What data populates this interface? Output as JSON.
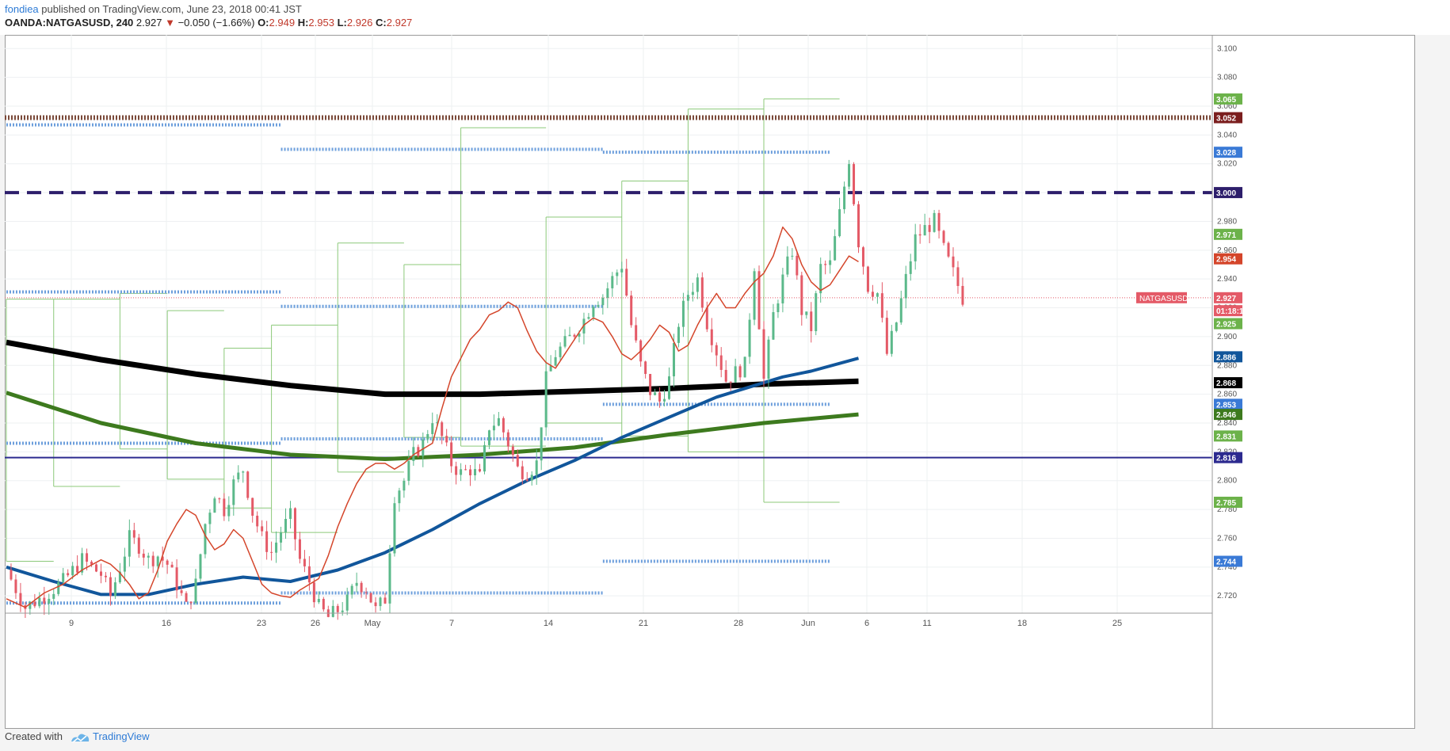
{
  "header": {
    "author": "fondiea",
    "published_text": "published on TradingView.com, June 23, 2018 00:41 JST",
    "symbol": "OANDA:NATGASUSD, 240",
    "last": "2.927",
    "change": "−0.050 (−1.66%)",
    "o_label": "O:",
    "o_value": "2.949",
    "h_label": "H:",
    "h_value": "2.953",
    "l_label": "L:",
    "l_value": "2.926",
    "c_label": "C:",
    "c_value": "2.927"
  },
  "footer": {
    "created_with": "Created with",
    "brand": "TradingView"
  },
  "colors": {
    "up": "#5bb98a",
    "down": "#e45a67",
    "ema_short": "#d4452a",
    "ma_blue": "#11569b",
    "ma_black": "#000000",
    "ma_green": "#3d7a1e",
    "envelope": "#8cc97a",
    "pivot": "#6d9fdc",
    "resistance_brown": "#7b4a3a",
    "round_dashed": "#2d1e6b",
    "support_navy": "#2c2a8f",
    "last_price": "#e45a67"
  },
  "chart_data": {
    "type": "candlestick",
    "title": "",
    "timeframe": "240",
    "x_tick_labels": [
      "9",
      "16",
      "23",
      "26",
      "May",
      "7",
      "14",
      "21",
      "28",
      "Jun",
      "6",
      "11",
      "18",
      "25"
    ],
    "y_tick_labels": [
      "3.100",
      "3.080",
      "3.060",
      "3.040",
      "3.020",
      "3.000",
      "2.980",
      "2.960",
      "2.940",
      "2.920",
      "2.900",
      "2.880",
      "2.860",
      "2.840",
      "2.820",
      "2.800",
      "2.780",
      "2.760",
      "2.740",
      "2.720"
    ],
    "ylim": [
      2.708,
      3.104
    ],
    "x_range_days": [
      0,
      106
    ],
    "grid": true,
    "series": [
      {
        "key": "ema_short",
        "points": [
          [
            0,
            2.718
          ],
          [
            2,
            2.712
          ],
          [
            4,
            2.722
          ],
          [
            6,
            2.728
          ],
          [
            8,
            2.738
          ],
          [
            10,
            2.745
          ],
          [
            11,
            2.742
          ],
          [
            12,
            2.736
          ],
          [
            13,
            2.728
          ],
          [
            14,
            2.718
          ],
          [
            15,
            2.722
          ],
          [
            16,
            2.738
          ],
          [
            17,
            2.758
          ],
          [
            18,
            2.77
          ],
          [
            19,
            2.78
          ],
          [
            20,
            2.776
          ],
          [
            21,
            2.762
          ],
          [
            22,
            2.752
          ],
          [
            23,
            2.756
          ],
          [
            24,
            2.766
          ],
          [
            25,
            2.76
          ],
          [
            26,
            2.744
          ],
          [
            27,
            2.728
          ],
          [
            28,
            2.722
          ],
          [
            29,
            2.72
          ],
          [
            30,
            2.719
          ],
          [
            31,
            2.724
          ],
          [
            32,
            2.728
          ],
          [
            33,
            2.732
          ],
          [
            34,
            2.748
          ],
          [
            35,
            2.768
          ],
          [
            36,
            2.784
          ],
          [
            37,
            2.798
          ],
          [
            38,
            2.808
          ],
          [
            39,
            2.812
          ],
          [
            40,
            2.812
          ],
          [
            41,
            2.808
          ],
          [
            42,
            2.812
          ],
          [
            43,
            2.818
          ],
          [
            44,
            2.822
          ],
          [
            45,
            2.826
          ],
          [
            46,
            2.85
          ],
          [
            47,
            2.872
          ],
          [
            48,
            2.885
          ],
          [
            49,
            2.898
          ],
          [
            50,
            2.905
          ],
          [
            51,
            2.915
          ],
          [
            52,
            2.918
          ],
          [
            53,
            2.924
          ],
          [
            54,
            2.92
          ],
          [
            55,
            2.904
          ],
          [
            56,
            2.89
          ],
          [
            57,
            2.882
          ],
          [
            58,
            2.878
          ],
          [
            59,
            2.888
          ],
          [
            60,
            2.898
          ],
          [
            61,
            2.908
          ],
          [
            62,
            2.913
          ],
          [
            63,
            2.91
          ],
          [
            64,
            2.9
          ],
          [
            65,
            2.888
          ],
          [
            66,
            2.884
          ],
          [
            67,
            2.89
          ],
          [
            68,
            2.898
          ],
          [
            69,
            2.908
          ],
          [
            70,
            2.903
          ],
          [
            71,
            2.89
          ],
          [
            72,
            2.894
          ],
          [
            73,
            2.908
          ],
          [
            74,
            2.92
          ],
          [
            75,
            2.93
          ],
          [
            76,
            2.92
          ],
          [
            77,
            2.92
          ],
          [
            78,
            2.93
          ],
          [
            79,
            2.938
          ],
          [
            80,
            2.944
          ],
          [
            81,
            2.956
          ],
          [
            82,
            2.976
          ],
          [
            83,
            2.968
          ],
          [
            84,
            2.95
          ],
          [
            85,
            2.938
          ],
          [
            86,
            2.932
          ],
          [
            87,
            2.936
          ],
          [
            88,
            2.946
          ],
          [
            89,
            2.956
          ],
          [
            90,
            2.952
          ]
        ]
      },
      {
        "key": "ma_blue",
        "points": [
          [
            0,
            2.74
          ],
          [
            5,
            2.73
          ],
          [
            10,
            2.721
          ],
          [
            15,
            2.721
          ],
          [
            20,
            2.728
          ],
          [
            25,
            2.733
          ],
          [
            30,
            2.73
          ],
          [
            35,
            2.738
          ],
          [
            40,
            2.75
          ],
          [
            45,
            2.766
          ],
          [
            50,
            2.784
          ],
          [
            55,
            2.8
          ],
          [
            60,
            2.814
          ],
          [
            65,
            2.83
          ],
          [
            70,
            2.844
          ],
          [
            75,
            2.858
          ],
          [
            80,
            2.868
          ],
          [
            82,
            2.872
          ],
          [
            85,
            2.876
          ],
          [
            90,
            2.885
          ]
        ]
      },
      {
        "key": "ma_black",
        "points": [
          [
            0,
            2.896
          ],
          [
            10,
            2.884
          ],
          [
            20,
            2.874
          ],
          [
            30,
            2.866
          ],
          [
            40,
            2.86
          ],
          [
            50,
            2.86
          ],
          [
            60,
            2.862
          ],
          [
            70,
            2.864
          ],
          [
            80,
            2.867
          ],
          [
            90,
            2.869
          ]
        ]
      },
      {
        "key": "ma_green",
        "points": [
          [
            0,
            2.861
          ],
          [
            10,
            2.84
          ],
          [
            20,
            2.826
          ],
          [
            30,
            2.818
          ],
          [
            40,
            2.815
          ],
          [
            50,
            2.818
          ],
          [
            60,
            2.823
          ],
          [
            70,
            2.832
          ],
          [
            80,
            2.84
          ],
          [
            90,
            2.846
          ]
        ]
      }
    ],
    "envelope_segments": [
      {
        "x": [
          0,
          5
        ],
        "y": [
          2.926,
          2.744
        ]
      },
      {
        "x": [
          5,
          12
        ],
        "y": [
          2.926,
          2.796
        ]
      },
      {
        "x": [
          12,
          17
        ],
        "y": [
          2.93,
          2.822
        ]
      },
      {
        "x": [
          17,
          23
        ],
        "y": [
          2.918,
          2.801
        ]
      },
      {
        "x": [
          23,
          28
        ],
        "y": [
          2.892,
          2.781
        ]
      },
      {
        "x": [
          28,
          35
        ],
        "y": [
          2.908,
          2.764
        ]
      },
      {
        "x": [
          35,
          42
        ],
        "y": [
          2.965,
          2.806
        ]
      },
      {
        "x": [
          42,
          48
        ],
        "y": [
          2.95,
          2.83
        ]
      },
      {
        "x": [
          48,
          57
        ],
        "y": [
          3.045,
          2.824
        ]
      },
      {
        "x": [
          57,
          65
        ],
        "y": [
          2.983,
          2.84
        ]
      },
      {
        "x": [
          65,
          72
        ],
        "y": [
          3.008,
          2.831
        ]
      },
      {
        "x": [
          72,
          80
        ],
        "y": [
          3.058,
          2.82
        ]
      },
      {
        "x": [
          80,
          88
        ],
        "y": [
          3.065,
          2.785
        ]
      }
    ],
    "pivot_segments": [
      {
        "x": [
          0,
          29
        ],
        "y": 3.047
      },
      {
        "x": [
          0,
          29
        ],
        "y": 2.931
      },
      {
        "x": [
          0,
          29
        ],
        "y": 2.826
      },
      {
        "x": [
          0,
          29
        ],
        "y": 2.715
      },
      {
        "x": [
          29,
          63
        ],
        "y": 3.03
      },
      {
        "x": [
          29,
          63
        ],
        "y": 2.921
      },
      {
        "x": [
          29,
          63
        ],
        "y": 2.829
      },
      {
        "x": [
          29,
          63
        ],
        "y": 2.722
      },
      {
        "x": [
          63,
          87
        ],
        "y": 3.028
      },
      {
        "x": [
          63,
          87
        ],
        "y": 2.853
      },
      {
        "x": [
          63,
          87
        ],
        "y": 2.744
      }
    ],
    "horizontal_lines": [
      {
        "key": "resistance_brown",
        "y": 3.052
      },
      {
        "key": "round_dashed",
        "y": 3.0
      },
      {
        "key": "support_navy",
        "y": 2.816
      },
      {
        "key": "last_price",
        "y": 2.927
      }
    ],
    "candle_path": [
      [
        0,
        2.738
      ],
      [
        2,
        2.712
      ],
      [
        4,
        2.72
      ],
      [
        6,
        2.73
      ],
      [
        8,
        2.745
      ],
      [
        10,
        2.735
      ],
      [
        11,
        2.72
      ],
      [
        12,
        2.74
      ],
      [
        13,
        2.76
      ],
      [
        14,
        2.755
      ],
      [
        15,
        2.745
      ],
      [
        16,
        2.748
      ],
      [
        17,
        2.742
      ],
      [
        18,
        2.728
      ],
      [
        19,
        2.712
      ],
      [
        20,
        2.728
      ],
      [
        21,
        2.77
      ],
      [
        22,
        2.792
      ],
      [
        23,
        2.78
      ],
      [
        24,
        2.798
      ],
      [
        25,
        2.808
      ],
      [
        26,
        2.778
      ],
      [
        27,
        2.76
      ],
      [
        28,
        2.75
      ],
      [
        29,
        2.765
      ],
      [
        30,
        2.775
      ],
      [
        31,
        2.745
      ],
      [
        32,
        2.73
      ],
      [
        33,
        2.712
      ],
      [
        34,
        2.705
      ],
      [
        35,
        2.71
      ],
      [
        36,
        2.716
      ],
      [
        37,
        2.73
      ],
      [
        38,
        2.725
      ],
      [
        39,
        2.71
      ],
      [
        40,
        2.718
      ],
      [
        41,
        2.79
      ],
      [
        42,
        2.8
      ],
      [
        43,
        2.818
      ],
      [
        44,
        2.826
      ],
      [
        45,
        2.844
      ],
      [
        46,
        2.83
      ],
      [
        47,
        2.812
      ],
      [
        48,
        2.805
      ],
      [
        49,
        2.808
      ],
      [
        50,
        2.802
      ],
      [
        51,
        2.838
      ],
      [
        52,
        2.842
      ],
      [
        53,
        2.826
      ],
      [
        54,
        2.808
      ],
      [
        55,
        2.806
      ],
      [
        56,
        2.812
      ],
      [
        57,
        2.87
      ],
      [
        58,
        2.888
      ],
      [
        59,
        2.895
      ],
      [
        60,
        2.903
      ],
      [
        61,
        2.912
      ],
      [
        62,
        2.925
      ],
      [
        63,
        2.928
      ],
      [
        64,
        2.94
      ],
      [
        65,
        2.95
      ],
      [
        66,
        2.908
      ],
      [
        67,
        2.88
      ],
      [
        68,
        2.862
      ],
      [
        69,
        2.855
      ],
      [
        70,
        2.87
      ],
      [
        71,
        2.91
      ],
      [
        72,
        2.93
      ],
      [
        73,
        2.94
      ],
      [
        74,
        2.91
      ],
      [
        75,
        2.89
      ],
      [
        76,
        2.87
      ],
      [
        77,
        2.875
      ],
      [
        78,
        2.88
      ],
      [
        79,
        2.95
      ],
      [
        80,
        2.87
      ],
      [
        81,
        2.915
      ],
      [
        82,
        2.94
      ],
      [
        83,
        2.96
      ],
      [
        84,
        2.918
      ],
      [
        85,
        2.906
      ],
      [
        86,
        2.948
      ],
      [
        87,
        2.95
      ],
      [
        88,
        2.985
      ],
      [
        89,
        3.024
      ],
      [
        90,
        2.966
      ],
      [
        91,
        2.935
      ],
      [
        92,
        2.93
      ],
      [
        93,
        2.888
      ],
      [
        94,
        2.91
      ],
      [
        95,
        2.94
      ],
      [
        96,
        2.968
      ],
      [
        97,
        2.975
      ],
      [
        98,
        2.98
      ],
      [
        99,
        2.96
      ],
      [
        100,
        2.944
      ],
      [
        101,
        2.927
      ]
    ],
    "price_labels": [
      {
        "text": "3.065",
        "color": "#6cb24a",
        "y": 3.065
      },
      {
        "text": "3.052",
        "color": "#7b1e1e",
        "y": 3.052
      },
      {
        "text": "3.028",
        "color": "#3a7ad6",
        "y": 3.028
      },
      {
        "text": "3.000",
        "color": "#2d1e6b",
        "y": 3.0
      },
      {
        "text": "2.971",
        "color": "#6cb24a",
        "y": 2.971
      },
      {
        "text": "2.954",
        "color": "#d4452a",
        "y": 2.954
      },
      {
        "text": "2.927",
        "color": "#e45a67",
        "y": 2.927
      },
      {
        "text": "01:18:1",
        "color": "#e45a67",
        "y": 2.918
      },
      {
        "text": "2.925",
        "color": "#6cb24a",
        "y": 2.909
      },
      {
        "text": "2.886",
        "color": "#11569b",
        "y": 2.886
      },
      {
        "text": "2.868",
        "color": "#000000",
        "y": 2.868
      },
      {
        "text": "2.853",
        "color": "#3a7ad6",
        "y": 2.853
      },
      {
        "text": "2.846",
        "color": "#3d7a1e",
        "y": 2.846
      },
      {
        "text": "2.831",
        "color": "#6cb24a",
        "y": 2.831
      },
      {
        "text": "2.816",
        "color": "#2c2a8f",
        "y": 2.816
      },
      {
        "text": "2.785",
        "color": "#6cb24a",
        "y": 2.785
      },
      {
        "text": "2.744",
        "color": "#3a7ad6",
        "y": 2.744
      }
    ],
    "symbol_tag": "NATGASUSD"
  }
}
